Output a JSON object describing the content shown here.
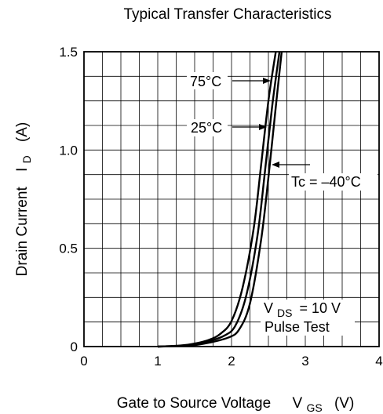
{
  "chart_data": {
    "type": "line",
    "title": "Typical Transfer Characteristics",
    "xlabel": "Gate to Source Voltage",
    "xlabel_symbol": "V",
    "xlabel_symbol_sub": "GS",
    "xlabel_unit": "(V)",
    "ylabel": "Drain Current",
    "ylabel_symbol": "I",
    "ylabel_symbol_sub": "D",
    "ylabel_unit": "(A)",
    "xlim": [
      0,
      4
    ],
    "ylim": [
      0,
      1.5
    ],
    "x_ticks": [
      0,
      1,
      2,
      3,
      4
    ],
    "x_tick_labels": [
      "0",
      "1",
      "2",
      "3",
      "4"
    ],
    "y_ticks": [
      0,
      0.5,
      1.0,
      1.5
    ],
    "y_tick_labels": [
      "0",
      "0.5",
      "1.0",
      "1.5"
    ],
    "x_minor_divisions": 4,
    "y_minor_divisions": 12,
    "grid": true,
    "series": [
      {
        "name": "75°C",
        "x": [
          1.0,
          1.3,
          1.5,
          1.7,
          1.85,
          2.0,
          2.15,
          2.3,
          2.4,
          2.5,
          2.6
        ],
        "y": [
          0.0,
          0.005,
          0.015,
          0.035,
          0.065,
          0.13,
          0.3,
          0.6,
          0.92,
          1.25,
          1.5
        ]
      },
      {
        "name": "25°C",
        "x": [
          1.0,
          1.3,
          1.5,
          1.7,
          1.9,
          2.05,
          2.2,
          2.35,
          2.45,
          2.55,
          2.65
        ],
        "y": [
          0.0,
          0.004,
          0.012,
          0.028,
          0.055,
          0.105,
          0.26,
          0.56,
          0.88,
          1.22,
          1.5
        ]
      },
      {
        "name": "Tc = –40°C",
        "x": [
          1.0,
          1.3,
          1.5,
          1.7,
          1.95,
          2.1,
          2.25,
          2.4,
          2.5,
          2.6,
          2.68
        ],
        "y": [
          0.0,
          0.003,
          0.008,
          0.02,
          0.045,
          0.085,
          0.22,
          0.54,
          0.86,
          1.22,
          1.5
        ]
      }
    ],
    "annotations": {
      "label_75": "75°C",
      "label_25": "25°C",
      "label_m40": "Tc = –40°C",
      "vds_symbol": "V",
      "vds_sub": "DS",
      "vds_value": "= 10 V",
      "pulse": "Pulse Test"
    }
  }
}
